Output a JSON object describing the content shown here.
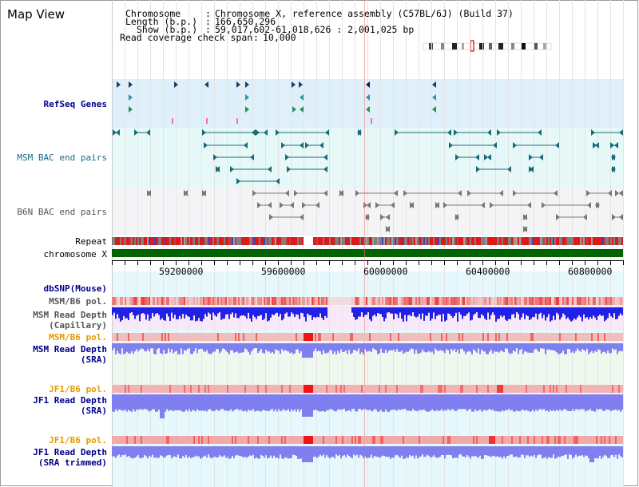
{
  "header": {
    "title": "Map View",
    "chromosome_label": "Chromosome",
    "chromosome_value": "Chromosome X, reference assembly (C57BL/6J) (Build 37)",
    "length_label": "Length (b.p.)",
    "length_value": "166,650,296",
    "show_label": "Show (b.p.)",
    "show_value": "59,017,602-61,018,626 : 2,001,025 bp",
    "coverage_label": "Read coverage check span",
    "coverage_value": "10,000"
  },
  "tracks": {
    "refseq": "RefSeq Genes",
    "msm_bac": "MSM BAC end pairs",
    "b6n_bac": "B6N BAC end pairs",
    "repeat": "Repeat",
    "chromosome": "chromosome X",
    "dbsnp": "dbSNP(Mouse)",
    "msm_b6_pol_1": "MSM/B6 pol.",
    "msm_depth_cap_1": "MSM Read Depth",
    "msm_depth_cap_2": "(Capillary)",
    "msm_b6_pol_2": "MSM/B6 pol.",
    "msm_depth_sra_1": "MSM Read Depth",
    "msm_depth_sra_2": "(SRA)",
    "jf1_b6_pol_1": "JF1/B6 pol.",
    "jf1_depth_sra_1": "JF1 Read Depth",
    "jf1_depth_sra_2": "(SRA)",
    "jf1_b6_pol_2": "JF1/B6 pol.",
    "jf1_depth_trim_1": "JF1 Read Depth",
    "jf1_depth_trim_2": "(SRA trimmed)"
  },
  "axis": {
    "ticks": [
      "59200000",
      "59600000",
      "60000000",
      "60400000",
      "60800000"
    ]
  },
  "colors": {
    "refseq_bg": "#dff0fb",
    "msm_bac_bg": "#e6f8f8",
    "b6n_bac_bg": "#f4f4f6",
    "chromosome": "#006400",
    "snp_light": "#fbd0d0",
    "snp_strong": "#e00000",
    "depth_dark": "#2020e6",
    "depth_light": "#7f7ff0",
    "selection_line": "#f08080"
  }
}
